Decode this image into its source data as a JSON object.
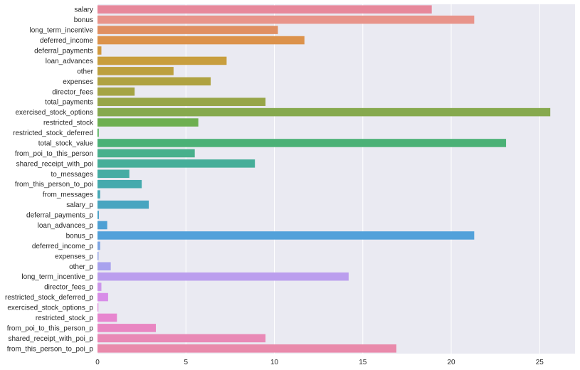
{
  "chart_data": {
    "type": "bar",
    "orientation": "horizontal",
    "title": "",
    "xlabel": "",
    "ylabel": "",
    "xlim": [
      0,
      27
    ],
    "xticks": [
      0,
      5,
      10,
      15,
      20,
      25
    ],
    "grid": true,
    "legend": "none",
    "background_color": "#EAEAF2",
    "categories": [
      "salary",
      "bonus",
      "long_term_incentive",
      "deferred_income",
      "deferral_payments",
      "loan_advances",
      "other",
      "expenses",
      "director_fees",
      "total_payments",
      "exercised_stock_options",
      "restricted_stock",
      "restricted_stock_deferred",
      "total_stock_value",
      "from_poi_to_this_person",
      "shared_receipt_with_poi",
      "to_messages",
      "from_this_person_to_poi",
      "from_messages",
      "salary_p",
      "deferral_payments_p",
      "loan_advances_p",
      "bonus_p",
      "deferred_income_p",
      "expenses_p",
      "other_p",
      "long_term_incentive_p",
      "director_fees_p",
      "restricted_stock_deferred_p",
      "exercised_stock_options_p",
      "restricted_stock_p",
      "from_poi_to_this_person_p",
      "shared_receipt_with_poi_p",
      "from_this_person_to_poi_p"
    ],
    "values": [
      18.9,
      21.3,
      10.2,
      11.7,
      0.22,
      7.3,
      4.3,
      6.4,
      2.1,
      9.5,
      25.6,
      5.7,
      0.07,
      23.1,
      5.5,
      8.9,
      1.8,
      2.5,
      0.15,
      2.9,
      0.08,
      0.55,
      21.3,
      0.15,
      0.06,
      0.75,
      14.2,
      0.22,
      0.6,
      0.05,
      1.1,
      3.3,
      9.5,
      16.9
    ],
    "colors": [
      "#E7889B",
      "#E8948A",
      "#E08F62",
      "#DC924B",
      "#D1993E",
      "#C89E3E",
      "#BCA03F",
      "#AFA241",
      "#A4A444",
      "#97A548",
      "#86A94E",
      "#6EAF50",
      "#4DB153",
      "#4BB176",
      "#48B08C",
      "#46AE99",
      "#45ACA3",
      "#45AAAD",
      "#45A8B6",
      "#47A5C0",
      "#4AA3CA",
      "#4EA0D4",
      "#52A1DA",
      "#7DA5E3",
      "#96A4E8",
      "#A8A2EE",
      "#BB9EEE",
      "#CC96EB",
      "#D88DE8",
      "#E287DC",
      "#E786CF",
      "#E986C2",
      "#E989B6",
      "#E98AAB"
    ]
  }
}
